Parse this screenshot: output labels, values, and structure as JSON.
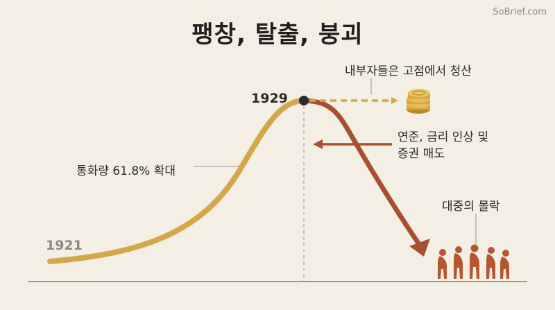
{
  "title": "팽창, 탈출, 붕괴",
  "watermark": "SoBrief.com",
  "timeline": {
    "start_year": "1921",
    "peak_year": "1929"
  },
  "labels": {
    "money_supply": "통화량 61.8% 확대",
    "insiders": "내부자들은 고점에서 청산",
    "policy_line1": "연준, 금리 인상 및",
    "policy_line2": "증권 매도",
    "public": "대중의 몰락"
  },
  "icons": [
    "gold-coins-icon",
    "slumped-people-icon"
  ],
  "colors": {
    "background": "#f3efe4",
    "expansion_curve": "#d3a84a",
    "collapse_arrow": "#a94f31",
    "insider_arrow": "#d3a84a",
    "policy_arrow": "#a94f31",
    "people": "#b5562f",
    "coins": "#d8a640"
  }
}
